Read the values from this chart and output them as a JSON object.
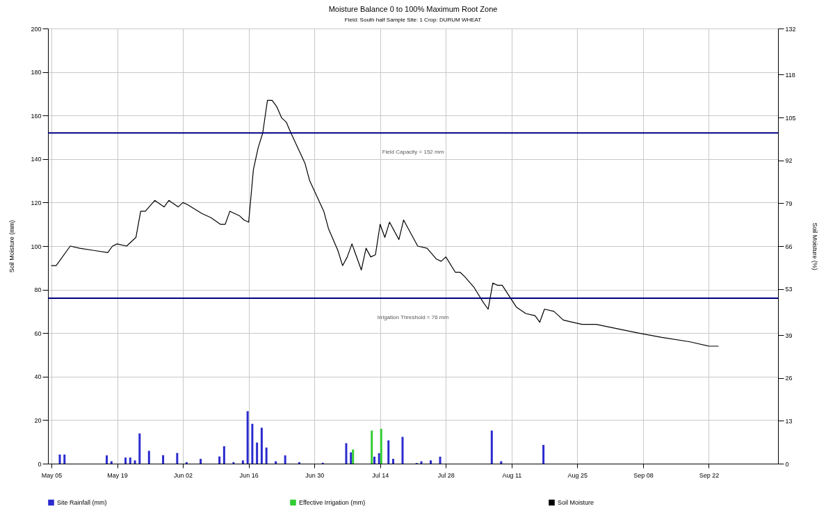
{
  "chart_data": {
    "type": "bar",
    "title": "Moisture Balance 0 to 100% Maximum Root Zone",
    "subtitle": "Field: South half    Sample Site: 1    Crop: DURUM WHEAT",
    "ylabel": "Soil Moisture (mm)",
    "y2label": "Soil Moisture (%)",
    "xlim": [
      "--05-05",
      "--10-06"
    ],
    "xticks": [
      {
        "value": "--05-05",
        "label": "May 05"
      },
      {
        "value": "--05-19",
        "label": "May 19"
      },
      {
        "value": "--06-02",
        "label": "Jun 02"
      },
      {
        "value": "--06-16",
        "label": "Jun 16"
      },
      {
        "value": "--06-30",
        "label": "Jun 30"
      },
      {
        "value": "--07-14",
        "label": "Jul 14"
      },
      {
        "value": "--07-28",
        "label": "Jul 28"
      },
      {
        "value": "--08-11",
        "label": "Aug 11"
      },
      {
        "value": "--08-25",
        "label": "Aug 25"
      },
      {
        "value": "--09-08",
        "label": "Sep 08"
      },
      {
        "value": "--09-22",
        "label": "Sep 22"
      }
    ],
    "ylim": [
      0,
      200
    ],
    "yticks": [
      0,
      20,
      40,
      60,
      80,
      100,
      120,
      140,
      160,
      180,
      200
    ],
    "y2lim": [
      0,
      132
    ],
    "y2ticks": [
      0,
      13,
      26,
      39,
      53,
      66,
      79,
      92,
      105,
      118,
      132
    ],
    "grid": true,
    "legend": "bottom",
    "series": [
      {
        "name": "Site Rainfall (mm)",
        "color": "#2b2bd0",
        "x": [
          "--05-07",
          "--05-08",
          "--05-17",
          "--05-18",
          "--05-21",
          "--05-22",
          "--05-23",
          "--05-24",
          "--05-26",
          "--05-29",
          "--06-01",
          "--06-03",
          "--06-06",
          "--06-10",
          "--06-11",
          "--06-13",
          "--06-15",
          "--06-16",
          "--06-17",
          "--06-18",
          "--06-19",
          "--06-20",
          "--06-22",
          "--06-24",
          "--06-27",
          "--07-02",
          "--07-07",
          "--07-08",
          "--07-13",
          "--07-14",
          "--07-16",
          "--07-17",
          "--07-19",
          "--07-22",
          "--07-23",
          "--07-25",
          "--07-27",
          "--08-07",
          "--08-09",
          "--08-18"
        ],
        "values": [
          4.2,
          4.2,
          3.8,
          1.1,
          2.8,
          2.8,
          1.5,
          13.9,
          5.9,
          3.9,
          4.9,
          0.7,
          2.2,
          3.3,
          8.0,
          0.7,
          1.5,
          24.1,
          18.3,
          9.7,
          16.5,
          7.4,
          1.1,
          3.8,
          0.7,
          0.4,
          9.4,
          5.2,
          3.2,
          4.8,
          10.7,
          2.2,
          12.3,
          0.3,
          1.1,
          1.5,
          3.2,
          15.2,
          1.1,
          8.6
        ]
      },
      {
        "name": "Effective Irrigation (mm)",
        "color": "#33cc33",
        "x": [
          "--07-08",
          "--07-12",
          "--07-14"
        ],
        "values": [
          6.5,
          15.2,
          16.0
        ]
      },
      {
        "name": "Soil Moisture",
        "type": "line",
        "color": "#000000",
        "x": [
          "--05-05",
          "--05-06",
          "--05-09",
          "--05-11",
          "--05-14",
          "--05-17",
          "--05-18",
          "--05-19",
          "--05-21",
          "--05-23",
          "--05-24",
          "--05-25",
          "--05-27",
          "--05-29",
          "--05-30",
          "--06-01",
          "--06-02",
          "--06-03",
          "--06-06",
          "--06-08",
          "--06-10",
          "--06-11",
          "--06-12",
          "--06-14",
          "--06-15",
          "--06-16",
          "--06-17",
          "--06-18",
          "--06-19",
          "--06-20",
          "--06-21",
          "--06-22",
          "--06-23",
          "--06-24",
          "--06-25",
          "--06-28",
          "--06-29",
          "--07-02",
          "--07-03",
          "--07-05",
          "--07-06",
          "--07-07",
          "--07-08",
          "--07-10",
          "--07-11",
          "--07-12",
          "--07-13",
          "--07-14",
          "--07-15",
          "--07-16",
          "--07-18",
          "--07-19",
          "--07-22",
          "--07-24",
          "--07-26",
          "--07-27",
          "--07-28",
          "--07-30",
          "--07-31",
          "--08-01",
          "--08-03",
          "--08-05",
          "--08-06",
          "--08-07",
          "--08-08",
          "--08-09",
          "--08-12",
          "--08-14",
          "--08-16",
          "--08-17",
          "--08-18",
          "--08-20",
          "--08-22",
          "--08-24",
          "--08-26",
          "--08-29",
          "--09-07",
          "--09-12",
          "--09-18",
          "--09-22",
          "--09-24"
        ],
        "values": [
          91,
          91,
          100,
          99,
          98,
          97,
          100,
          101,
          100,
          104,
          116,
          116,
          121,
          118,
          121,
          118,
          120,
          119,
          115,
          113,
          110,
          110,
          116,
          114,
          112,
          111,
          135,
          145,
          152,
          167,
          167,
          164,
          159,
          157,
          152,
          138,
          130,
          116,
          108,
          98,
          91,
          95,
          101,
          89,
          99,
          95,
          96,
          110,
          104,
          111,
          103,
          112,
          100,
          99,
          94,
          93,
          95,
          88,
          88,
          86,
          81,
          74,
          71,
          83,
          82,
          82,
          72,
          69,
          68,
          65,
          71,
          70,
          66,
          65,
          64,
          64,
          60,
          58,
          56,
          54,
          54
        ]
      }
    ],
    "ref_lines": [
      {
        "axis": "y",
        "value": 152,
        "label": "Field Capacity = 152 mm",
        "color": "#000080"
      },
      {
        "axis": "y",
        "value": 76,
        "label": "Irrigation Threshold = 76 mm",
        "color": "#000080"
      }
    ]
  }
}
